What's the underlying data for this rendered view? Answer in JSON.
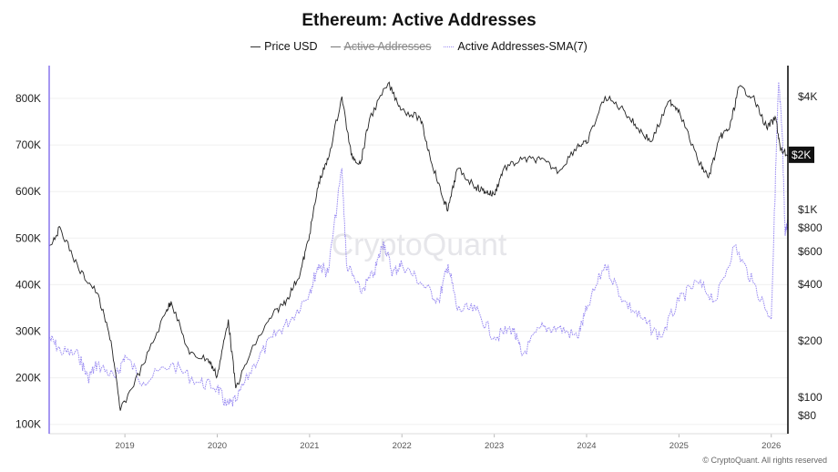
{
  "title": "Ethereum: Active Addresses",
  "legend": [
    {
      "label": "Price USD",
      "color": "#222222",
      "hidden": false
    },
    {
      "label": "Active Addresses",
      "color": "#555555",
      "hidden": true
    },
    {
      "label": "Active Addresses-SMA(7)",
      "color": "#7b68ee",
      "hidden": false
    }
  ],
  "watermark": "CryptoQuant",
  "footer": "© CryptoQuant. All rights reserved",
  "chart_data": {
    "type": "line",
    "title": "Ethereum: Active Addresses",
    "x_range": [
      2018.18,
      2026.18
    ],
    "x_ticks": [
      "2019",
      "2020",
      "2021",
      "2022",
      "2023",
      "2024",
      "2025",
      "2026"
    ],
    "x_tick_values": [
      2019,
      2020,
      2021,
      2022,
      2023,
      2024,
      2025,
      2026
    ],
    "y_left": {
      "scale": "linear",
      "range": [
        100,
        830
      ],
      "unit": "K",
      "ticks": [
        100,
        200,
        300,
        400,
        500,
        600,
        700,
        800
      ],
      "tick_labels": [
        "100K",
        "200K",
        "300K",
        "400K",
        "500K",
        "600K",
        "700K",
        "800K"
      ]
    },
    "y_right": {
      "scale": "log",
      "range": [
        70,
        5000
      ],
      "ticks": [
        80,
        100,
        200,
        400,
        600,
        800,
        1000,
        2000,
        4000
      ],
      "tick_labels": [
        "$80",
        "$100",
        "$200",
        "$400",
        "$600",
        "$800",
        "$1K",
        "$2K",
        "$4K"
      ],
      "current_value_label": "$2K"
    },
    "series": [
      {
        "name": "Price USD",
        "axis": "right",
        "color": "#222222",
        "x": [
          2018.18,
          2018.3,
          2018.5,
          2018.7,
          2018.85,
          2018.95,
          2019.2,
          2019.45,
          2019.5,
          2019.7,
          2019.9,
          2020.0,
          2020.12,
          2020.2,
          2020.4,
          2020.6,
          2020.75,
          2020.9,
          2021.0,
          2021.1,
          2021.2,
          2021.35,
          2021.45,
          2021.55,
          2021.65,
          2021.85,
          2022.0,
          2022.2,
          2022.3,
          2022.45,
          2022.5,
          2022.6,
          2022.8,
          2022.9,
          2023.0,
          2023.1,
          2023.3,
          2023.5,
          2023.7,
          2023.9,
          2024.0,
          2024.2,
          2024.4,
          2024.55,
          2024.7,
          2024.9,
          2025.0,
          2025.2,
          2025.32,
          2025.45,
          2025.55,
          2025.65,
          2025.8,
          2025.95,
          2026.05,
          2026.1,
          2026.18
        ],
        "values": [
          640,
          800,
          480,
          360,
          200,
          85,
          150,
          290,
          325,
          170,
          160,
          130,
          260,
          112,
          190,
          275,
          330,
          460,
          740,
          1400,
          1850,
          4000,
          1960,
          1750,
          3060,
          4700,
          3400,
          3060,
          1960,
          1120,
          1000,
          1650,
          1320,
          1250,
          1200,
          1650,
          1850,
          1850,
          1600,
          2200,
          2250,
          4000,
          3400,
          2730,
          2300,
          3800,
          3400,
          1850,
          1480,
          2450,
          2730,
          4500,
          4000,
          2730,
          3060,
          2070,
          1960
        ]
      },
      {
        "name": "Active Addresses-SMA(7)",
        "axis": "left",
        "color": "#7b68ee",
        "x": [
          2018.18,
          2018.3,
          2018.5,
          2018.6,
          2018.7,
          2018.9,
          2019.0,
          2019.2,
          2019.5,
          2019.8,
          2020.0,
          2020.1,
          2020.2,
          2020.4,
          2020.6,
          2020.8,
          2021.0,
          2021.1,
          2021.2,
          2021.35,
          2021.4,
          2021.55,
          2021.7,
          2021.8,
          2021.9,
          2022.0,
          2022.2,
          2022.4,
          2022.5,
          2022.6,
          2022.8,
          2023.0,
          2023.2,
          2023.3,
          2023.5,
          2023.7,
          2023.9,
          2024.0,
          2024.2,
          2024.4,
          2024.6,
          2024.8,
          2025.0,
          2025.2,
          2025.4,
          2025.6,
          2025.8,
          2026.0,
          2026.05,
          2026.08,
          2026.12,
          2026.15,
          2026.18
        ],
        "values": [
          287,
          258,
          248,
          199,
          229,
          199,
          248,
          190,
          229,
          190,
          180,
          140,
          150,
          229,
          287,
          326,
          385,
          444,
          425,
          650,
          444,
          385,
          425,
          493,
          425,
          444,
          405,
          366,
          444,
          346,
          346,
          287,
          307,
          248,
          307,
          307,
          287,
          346,
          444,
          366,
          326,
          287,
          366,
          405,
          366,
          483,
          405,
          326,
          660,
          835,
          718,
          505,
          541
        ]
      }
    ]
  }
}
